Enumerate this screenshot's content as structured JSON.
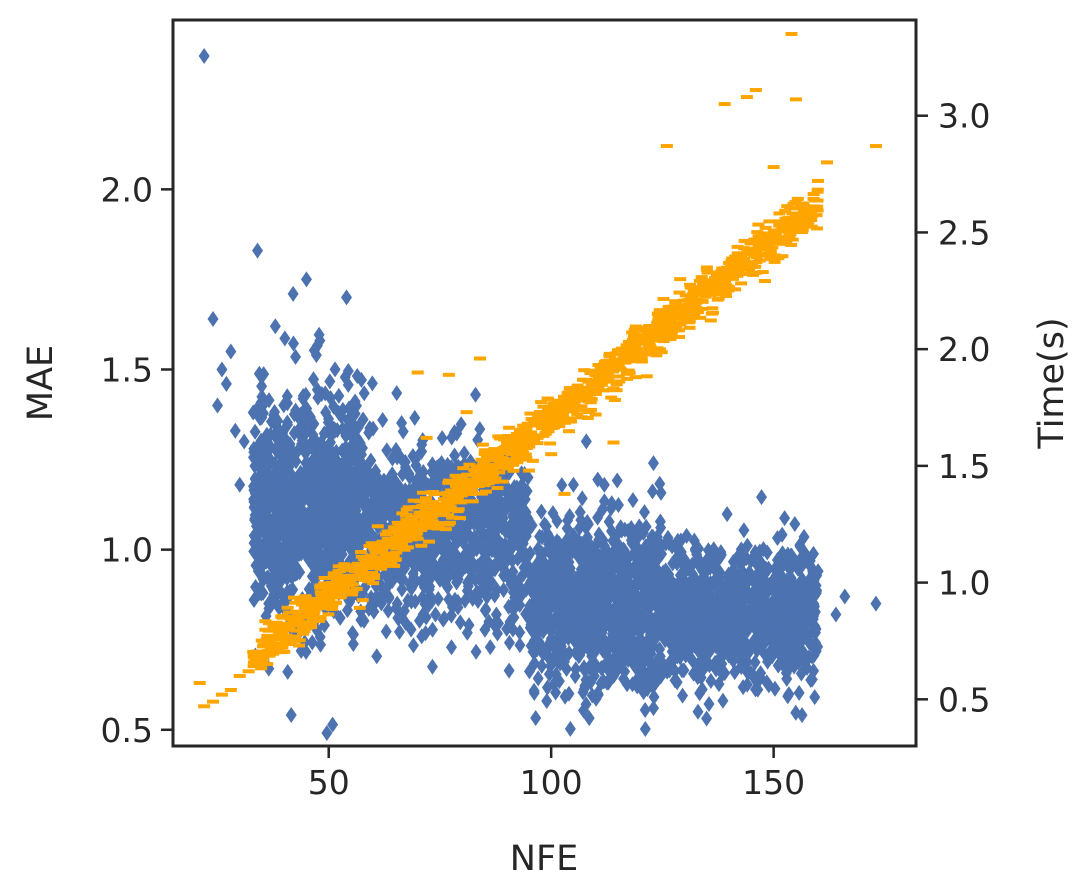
{
  "chart_data": {
    "type": "scatter",
    "xlabel": "NFE",
    "ylabel": "MAE",
    "y2label": "Time(s)",
    "xlim": [
      15,
      182
    ],
    "ylim": [
      0.455,
      2.47
    ],
    "y2lim": [
      0.3,
      3.41
    ],
    "xticks": [
      50,
      100,
      150
    ],
    "yticks": [
      0.5,
      1.0,
      1.5,
      2.0
    ],
    "y2ticks": [
      0.5,
      1.0,
      1.5,
      2.0,
      2.5,
      3.0
    ],
    "xtick_labels": [
      "50",
      "100",
      "150"
    ],
    "ytick_labels": [
      "0.5",
      "1.0",
      "1.5",
      "2.0"
    ],
    "y2tick_labels": [
      "0.5",
      "1.0",
      "1.5",
      "2.0",
      "2.5",
      "3.0"
    ],
    "grid": false,
    "legend": "none",
    "series": [
      {
        "axis": "left",
        "marker": "diamond",
        "color": "#4c72b0",
        "clusters": [
          {
            "x_range": [
              33,
              58
            ],
            "y_center": 1.12,
            "y_spread": 0.15,
            "count": 1100
          },
          {
            "x_range": [
              58,
              95
            ],
            "y_center": 1.05,
            "y_spread": 0.12,
            "count": 900
          },
          {
            "x_range": [
              95,
              125
            ],
            "y_center": 0.85,
            "y_spread": 0.12,
            "count": 1000
          },
          {
            "x_range": [
              125,
              160
            ],
            "y_center": 0.82,
            "y_spread": 0.09,
            "count": 1000
          }
        ],
        "outliers": [
          {
            "x": 22,
            "y": 2.37
          },
          {
            "x": 34,
            "y": 1.83
          },
          {
            "x": 24,
            "y": 1.64
          },
          {
            "x": 42,
            "y": 1.71
          },
          {
            "x": 45,
            "y": 1.75
          },
          {
            "x": 54,
            "y": 1.7
          },
          {
            "x": 30,
            "y": 1.18
          },
          {
            "x": 26,
            "y": 1.5
          },
          {
            "x": 28,
            "y": 1.55
          },
          {
            "x": 25,
            "y": 1.4
          },
          {
            "x": 27,
            "y": 1.46
          },
          {
            "x": 29,
            "y": 1.33
          },
          {
            "x": 31,
            "y": 1.3
          },
          {
            "x": 38,
            "y": 1.62
          },
          {
            "x": 48,
            "y": 1.58
          },
          {
            "x": 83,
            "y": 1.43
          },
          {
            "x": 105,
            "y": 1.18
          },
          {
            "x": 118,
            "y": 1.06
          },
          {
            "x": 152,
            "y": 0.99
          },
          {
            "x": 160,
            "y": 0.94
          },
          {
            "x": 166,
            "y": 0.87
          },
          {
            "x": 173,
            "y": 0.85
          },
          {
            "x": 164,
            "y": 0.82
          },
          {
            "x": 99,
            "y": 0.58
          },
          {
            "x": 123,
            "y": 0.56
          },
          {
            "x": 133,
            "y": 0.55
          },
          {
            "x": 104,
            "y": 0.6
          },
          {
            "x": 62,
            "y": 0.86
          },
          {
            "x": 67,
            "y": 0.83
          },
          {
            "x": 74,
            "y": 0.82
          },
          {
            "x": 86,
            "y": 0.8
          },
          {
            "x": 90,
            "y": 0.78
          },
          {
            "x": 76,
            "y": 0.81
          }
        ]
      },
      {
        "axis": "right",
        "marker": "hline",
        "color": "#ffa500",
        "trend": {
          "x_start": 33,
          "y_start": 0.68,
          "x_end": 160,
          "y_end": 2.62,
          "y_spread": 0.045,
          "count": 1500
        },
        "outliers": [
          {
            "x": 21,
            "y": 0.57
          },
          {
            "x": 22,
            "y": 0.47
          },
          {
            "x": 24,
            "y": 0.49
          },
          {
            "x": 26,
            "y": 0.52
          },
          {
            "x": 28,
            "y": 0.54
          },
          {
            "x": 30,
            "y": 0.6
          },
          {
            "x": 32,
            "y": 0.62
          },
          {
            "x": 154,
            "y": 3.35
          },
          {
            "x": 146,
            "y": 3.11
          },
          {
            "x": 155,
            "y": 3.07
          },
          {
            "x": 139,
            "y": 3.05
          },
          {
            "x": 144,
            "y": 3.08
          },
          {
            "x": 126,
            "y": 2.87
          },
          {
            "x": 173,
            "y": 2.87
          },
          {
            "x": 162,
            "y": 2.8
          },
          {
            "x": 150,
            "y": 2.78
          },
          {
            "x": 77,
            "y": 1.89
          },
          {
            "x": 70,
            "y": 1.9
          },
          {
            "x": 72,
            "y": 1.62
          },
          {
            "x": 110,
            "y": 1.72
          },
          {
            "x": 121,
            "y": 2.03
          },
          {
            "x": 119,
            "y": 1.88
          },
          {
            "x": 114,
            "y": 1.6
          },
          {
            "x": 95,
            "y": 1.48
          },
          {
            "x": 100,
            "y": 1.55
          },
          {
            "x": 103,
            "y": 1.38
          },
          {
            "x": 62,
            "y": 1.07
          },
          {
            "x": 58,
            "y": 1.04
          },
          {
            "x": 84,
            "y": 1.96
          },
          {
            "x": 81,
            "y": 1.73
          },
          {
            "x": 124,
            "y": 2.15
          },
          {
            "x": 129,
            "y": 2.3
          },
          {
            "x": 135,
            "y": 2.35
          }
        ]
      }
    ]
  }
}
